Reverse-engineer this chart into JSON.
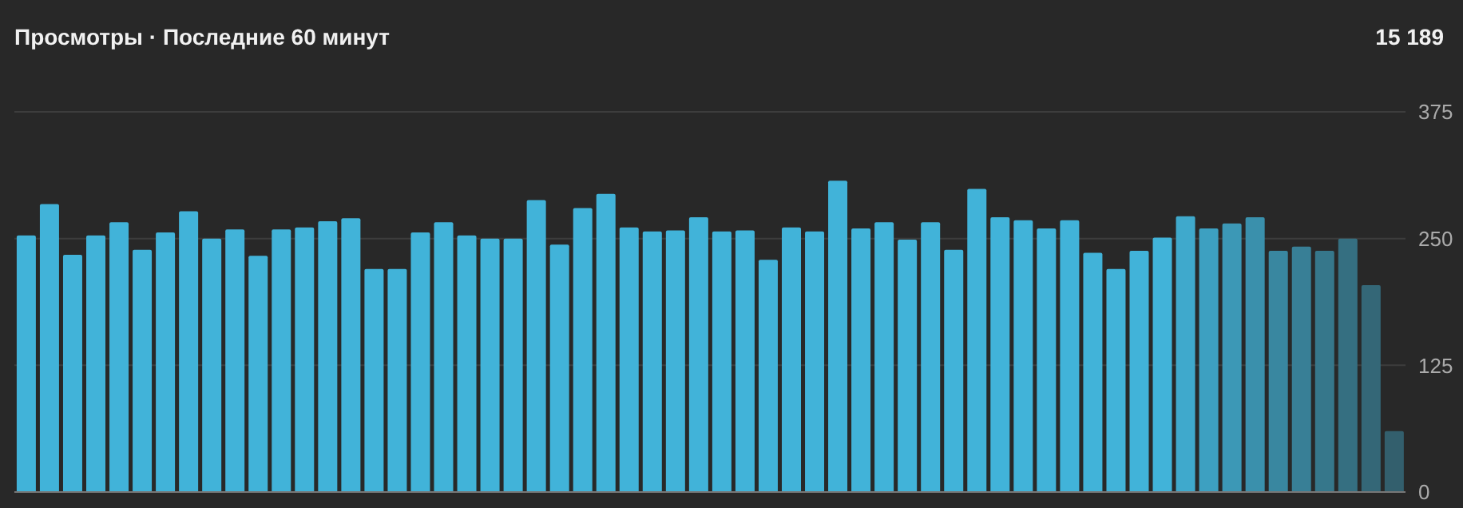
{
  "chart_data": {
    "type": "bar",
    "title": "Просмотры · Последние 60 минут",
    "annotations": [
      "15 189"
    ],
    "categories": [
      null,
      null,
      null,
      null,
      null,
      null,
      null,
      null,
      null,
      null,
      null,
      null,
      null,
      null,
      null,
      null,
      null,
      null,
      null,
      null,
      null,
      null,
      null,
      null,
      null,
      null,
      null,
      null,
      null,
      null,
      null,
      null,
      null,
      null,
      null,
      null,
      null,
      null,
      null,
      null,
      null,
      null,
      null,
      null,
      null,
      null,
      null,
      null,
      null,
      null,
      null,
      null,
      null,
      null,
      null,
      null,
      null,
      null,
      null,
      null
    ],
    "values": [
      253,
      284,
      234,
      253,
      266,
      239,
      256,
      277,
      250,
      259,
      233,
      259,
      261,
      267,
      270,
      220,
      220,
      256,
      266,
      253,
      250,
      250,
      288,
      244,
      280,
      294,
      261,
      257,
      258,
      271,
      257,
      258,
      229,
      261,
      257,
      307,
      260,
      266,
      249,
      266,
      239,
      299,
      271,
      268,
      260,
      268,
      236,
      220,
      238,
      251,
      272,
      260,
      265,
      271,
      238,
      242,
      238,
      250,
      204,
      60
    ],
    "colors": [
      "#41b3d9",
      "#41b3d9",
      "#41b3d9",
      "#41b3d9",
      "#41b3d9",
      "#41b3d9",
      "#41b3d9",
      "#41b3d9",
      "#41b3d9",
      "#41b3d9",
      "#41b3d9",
      "#41b3d9",
      "#41b3d9",
      "#41b3d9",
      "#41b3d9",
      "#41b3d9",
      "#41b3d9",
      "#41b3d9",
      "#41b3d9",
      "#41b3d9",
      "#41b3d9",
      "#41b3d9",
      "#41b3d9",
      "#41b3d9",
      "#41b3d9",
      "#41b3d9",
      "#41b3d9",
      "#41b3d9",
      "#41b3d9",
      "#41b3d9",
      "#41b3d9",
      "#41b3d9",
      "#41b3d9",
      "#41b3d9",
      "#41b3d9",
      "#41b3d9",
      "#41b3d9",
      "#41b3d9",
      "#41b3d9",
      "#41b3d9",
      "#41b3d9",
      "#41b3d9",
      "#41b3d9",
      "#41b3d9",
      "#41b3d9",
      "#41b3d9",
      "#41b3d9",
      "#41b3d9",
      "#41b3d9",
      "#41b3d9",
      "#3fa9cc",
      "#3da0c1",
      "#3c98b6",
      "#3a90ac",
      "#3987a0",
      "#387f96",
      "#36778b",
      "#356f81",
      "#346777",
      "#335f6d"
    ],
    "ylim": [
      0,
      375
    ],
    "yticks": [
      0,
      125,
      250,
      375
    ],
    "grid": "y",
    "tick_labels": "y"
  }
}
